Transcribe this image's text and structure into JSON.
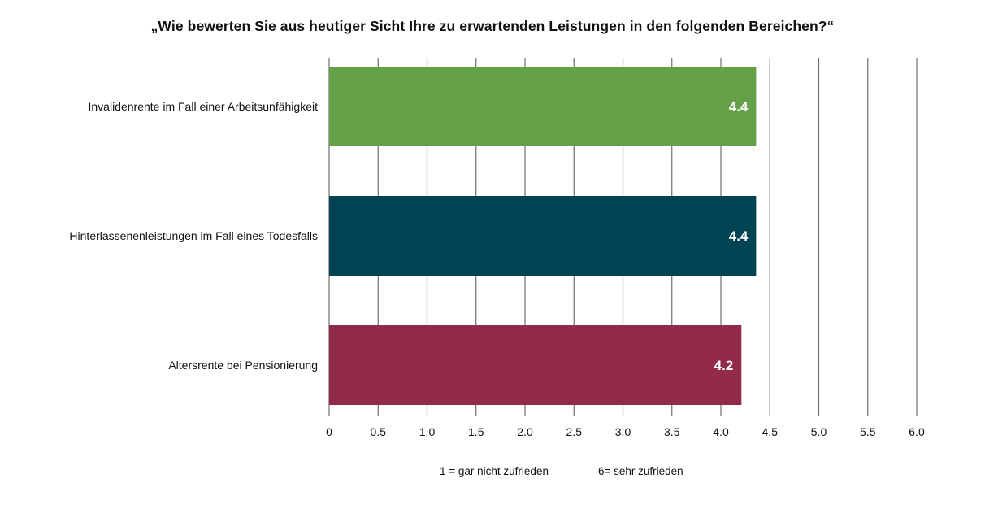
{
  "chart_data": {
    "type": "bar",
    "orientation": "horizontal",
    "title": "„Wie bewerten Sie aus heutiger Sicht Ihre zu erwartenden Leistungen in den folgenden Bereichen?“",
    "categories": [
      "Invalidenrente im Fall einer Arbeitsunfähigkeit",
      "Hinterlassenenleistungen im Fall eines Todesfalls",
      "Altersrente bei Pensionierung"
    ],
    "values": [
      4.36,
      4.36,
      4.21
    ],
    "value_labels": [
      "4.4",
      "4.4",
      "4.2"
    ],
    "colors": [
      "#64A047",
      "#004453",
      "#922A49"
    ],
    "xlim": [
      0,
      6
    ],
    "xticks": [
      "0",
      "0.5",
      "1.0",
      "1.5",
      "2.0",
      "2.5",
      "3.0",
      "3.5",
      "4.0",
      "4.5",
      "5.0",
      "5.5",
      "6.0"
    ],
    "xlabel": "",
    "ylabel": "",
    "grid": true,
    "notes": {
      "min": "1 = gar nicht zufrieden",
      "max": "6= sehr zufrieden"
    }
  }
}
